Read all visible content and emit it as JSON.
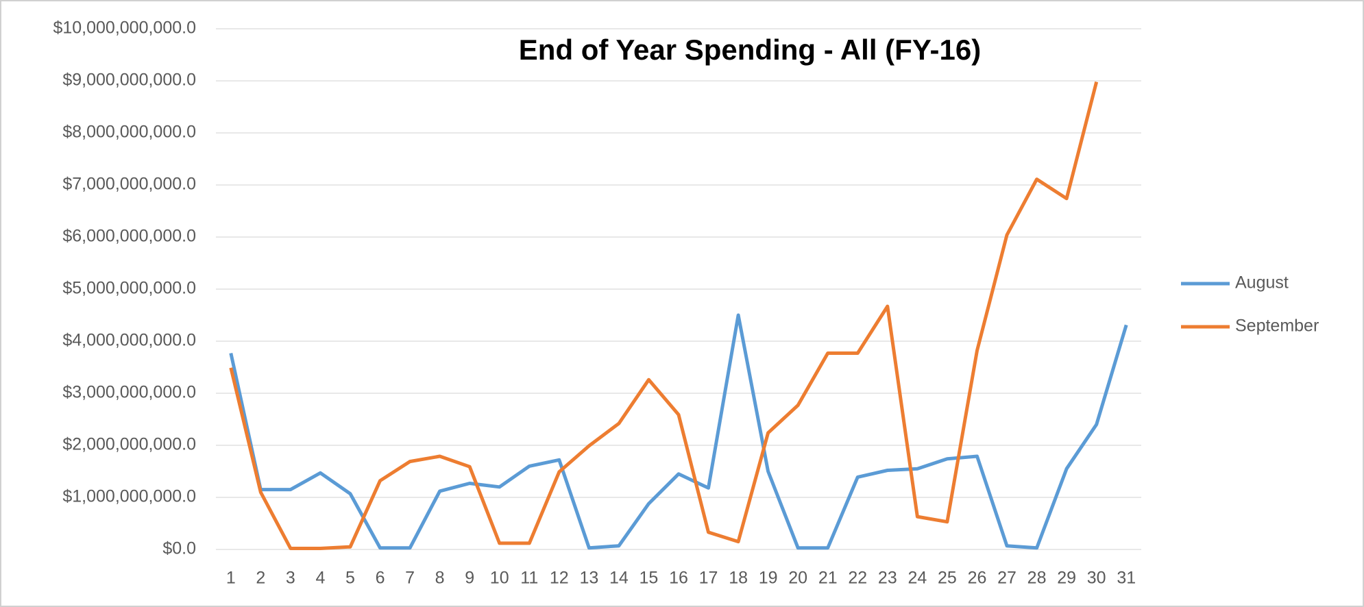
{
  "chart_data": {
    "type": "line",
    "title": "End of Year Spending - All (FY-16)",
    "categories": [
      "1",
      "2",
      "3",
      "4",
      "5",
      "6",
      "7",
      "8",
      "9",
      "10",
      "11",
      "12",
      "13",
      "14",
      "15",
      "16",
      "17",
      "18",
      "19",
      "20",
      "21",
      "22",
      "23",
      "24",
      "25",
      "26",
      "27",
      "28",
      "29",
      "30",
      "31"
    ],
    "series": [
      {
        "name": "August",
        "color": "#5b9bd5",
        "values": [
          3770000000,
          1150000000,
          1150000000,
          1470000000,
          1070000000,
          30000000,
          30000000,
          1120000000,
          1270000000,
          1200000000,
          1600000000,
          1720000000,
          30000000,
          70000000,
          880000000,
          1450000000,
          1180000000,
          4500000000,
          1500000000,
          30000000,
          30000000,
          1390000000,
          1520000000,
          1550000000,
          1740000000,
          1790000000,
          70000000,
          30000000,
          1550000000,
          2400000000,
          4310000000
        ]
      },
      {
        "name": "September",
        "color": "#ed7d31",
        "values": [
          3490000000,
          1100000000,
          20000000,
          20000000,
          50000000,
          1320000000,
          1690000000,
          1790000000,
          1590000000,
          120000000,
          120000000,
          1490000000,
          1990000000,
          2420000000,
          3260000000,
          2590000000,
          330000000,
          150000000,
          2240000000,
          2770000000,
          3770000000,
          3770000000,
          4670000000,
          630000000,
          530000000,
          3820000000,
          6040000000,
          7110000000,
          6740000000,
          8980000000,
          null
        ]
      }
    ],
    "ylim": [
      0,
      10000000000
    ],
    "yticks": [
      {
        "value": 0,
        "label": "$0.0"
      },
      {
        "value": 1000000000,
        "label": "$1,000,000,000.0"
      },
      {
        "value": 2000000000,
        "label": "$2,000,000,000.0"
      },
      {
        "value": 3000000000,
        "label": "$3,000,000,000.0"
      },
      {
        "value": 4000000000,
        "label": "$4,000,000,000.0"
      },
      {
        "value": 5000000000,
        "label": "$5,000,000,000.0"
      },
      {
        "value": 6000000000,
        "label": "$6,000,000,000.0"
      },
      {
        "value": 7000000000,
        "label": "$7,000,000,000.0"
      },
      {
        "value": 8000000000,
        "label": "$8,000,000,000.0"
      },
      {
        "value": 9000000000,
        "label": "$9,000,000,000.0"
      },
      {
        "value": 10000000000,
        "label": "$10,000,000,000.0"
      }
    ],
    "grid": true,
    "legend": "right"
  }
}
